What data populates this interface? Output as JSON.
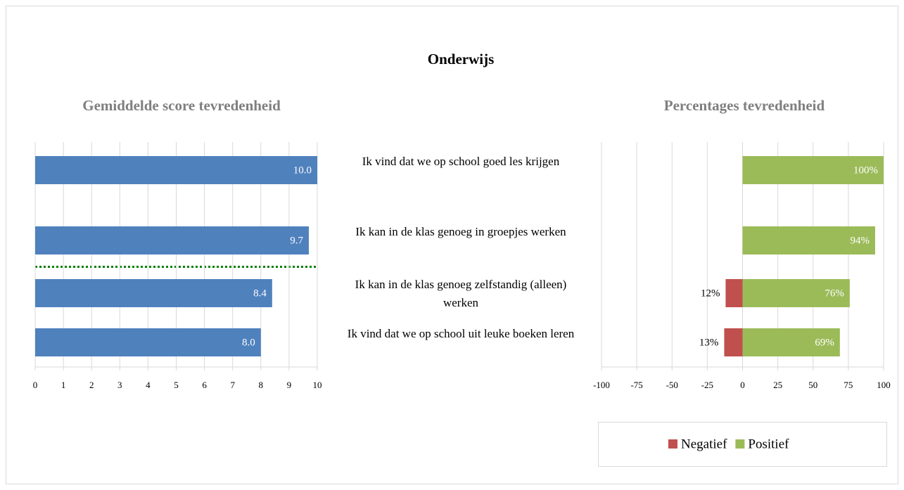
{
  "title": "Onderwijs",
  "chart_data": [
    {
      "type": "hbar",
      "title": "Gemiddelde score tevredenheid",
      "categories": [
        "Ik vind dat we op school goed les krijgen",
        "Ik kan in de klas genoeg in groepjes werken",
        "Ik kan in de klas genoeg zelfstandig (alleen) werken",
        "Ik vind dat we op school uit leuke boeken leren"
      ],
      "values": [
        10.0,
        9.7,
        8.4,
        8.0
      ],
      "value_labels": [
        "10.0",
        "9.7",
        "8.4",
        "8.0"
      ],
      "color": "#4f81bd",
      "xlim": [
        0,
        10
      ],
      "xticks": [
        0,
        1,
        2,
        3,
        4,
        5,
        6,
        7,
        8,
        9,
        10
      ],
      "grid": true
    },
    {
      "type": "diverging",
      "title": "Percentages tevredenheid",
      "series": [
        {
          "name": "Negatief",
          "color": "#c0504d",
          "values": [
            null,
            null,
            -12,
            -13
          ],
          "value_labels": [
            null,
            null,
            "12%",
            "13%"
          ]
        },
        {
          "name": "Positief",
          "color": "#9bbb59",
          "values": [
            100,
            94,
            76,
            69
          ],
          "value_labels": [
            "100%",
            "94%",
            "76%",
            "69%"
          ]
        }
      ],
      "xlim": [
        -100,
        100
      ],
      "xticks": [
        -100,
        -75,
        -50,
        -25,
        0,
        25,
        50,
        75,
        100
      ],
      "grid": true
    }
  ]
}
